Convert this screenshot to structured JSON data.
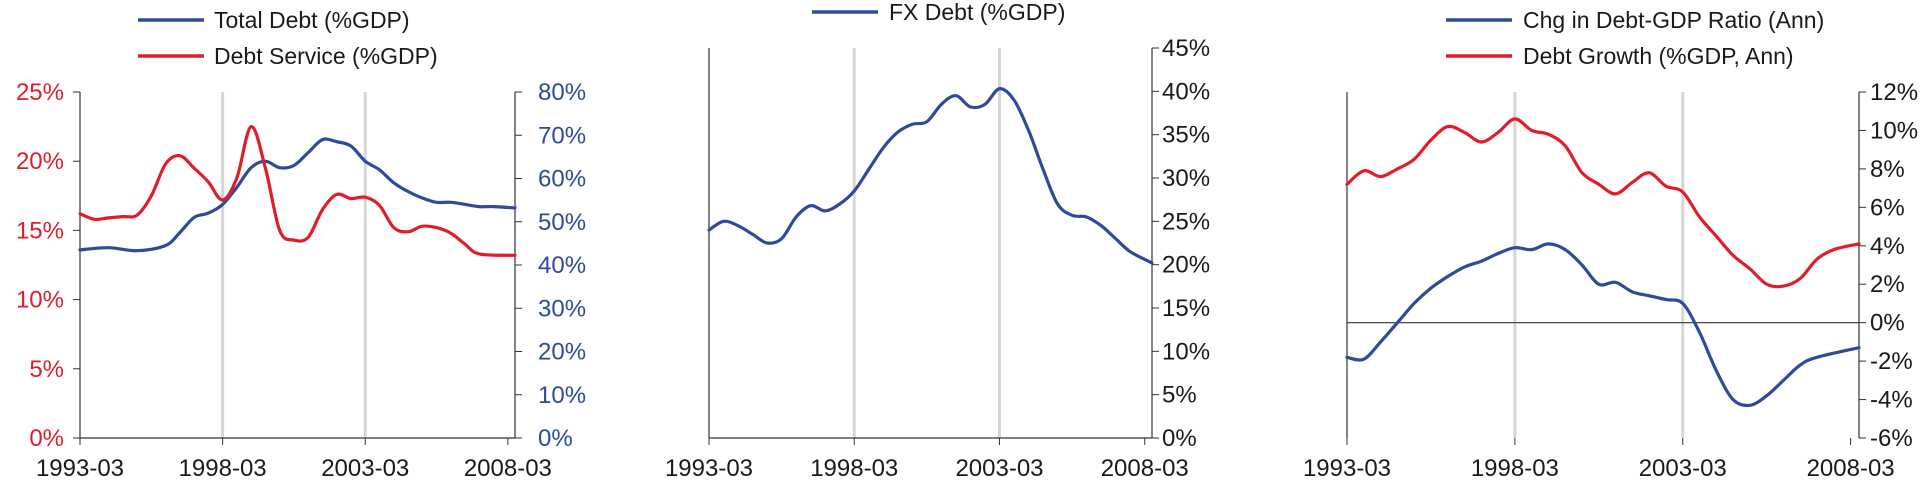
{
  "colors": {
    "blue": "#2e4a9a",
    "red": "#e01e2b",
    "axis": "#333333",
    "shade": "#d6d6d6",
    "text": "#1a1a1a"
  },
  "chart_data": [
    {
      "type": "line",
      "title": "",
      "x_ticks": [
        "1993-03",
        "1998-03",
        "2003-03",
        "2008-03"
      ],
      "x_range": [
        "1993-03",
        "2008-06"
      ],
      "vlines": [
        "1998-03",
        "2003-03"
      ],
      "legend_position": "top-left",
      "y_left": {
        "range": [
          0,
          25
        ],
        "ticks": [
          0,
          5,
          10,
          15,
          20,
          25
        ],
        "tick_labels": [
          "0%",
          "5%",
          "10%",
          "15%",
          "20%",
          "25%"
        ],
        "color": "#e01e2b"
      },
      "y_right": {
        "range": [
          0,
          80
        ],
        "ticks": [
          0,
          10,
          20,
          30,
          40,
          50,
          60,
          70,
          80
        ],
        "tick_labels": [
          "0%",
          "10%",
          "20%",
          "30%",
          "40%",
          "50%",
          "60%",
          "70%",
          "80%"
        ],
        "color": "#2e4a9a"
      },
      "series": [
        {
          "name": "Total Debt (%GDP)",
          "axis": "right",
          "color": "#2e4a9a",
          "points": [
            [
              "1993-03",
              43.5
            ],
            [
              "1994-03",
              44
            ],
            [
              "1995-03",
              43.3
            ],
            [
              "1996-03",
              44.5
            ],
            [
              "1996-09",
              47.5
            ],
            [
              "1997-03",
              51
            ],
            [
              "1997-09",
              52
            ],
            [
              "1998-03",
              54
            ],
            [
              "1998-09",
              58
            ],
            [
              "1999-03",
              62.5
            ],
            [
              "1999-09",
              64
            ],
            [
              "2000-03",
              62.5
            ],
            [
              "2000-09",
              63
            ],
            [
              "2001-03",
              66
            ],
            [
              "2001-09",
              69
            ],
            [
              "2002-03",
              68.5
            ],
            [
              "2002-09",
              67.5
            ],
            [
              "2003-03",
              64
            ],
            [
              "2003-09",
              62
            ],
            [
              "2004-03",
              59
            ],
            [
              "2004-09",
              57
            ],
            [
              "2005-03",
              55.5
            ],
            [
              "2005-09",
              54.5
            ],
            [
              "2006-03",
              54.5
            ],
            [
              "2006-09",
              54
            ],
            [
              "2007-03",
              53.5
            ],
            [
              "2007-09",
              53.5
            ],
            [
              "2008-06",
              53.2
            ]
          ]
        },
        {
          "name": "Debt Service (%GDP)",
          "axis": "left",
          "color": "#e01e2b",
          "points": [
            [
              "1993-03",
              16.2
            ],
            [
              "1993-09",
              15.8
            ],
            [
              "1994-03",
              15.9
            ],
            [
              "1994-09",
              16
            ],
            [
              "1995-03",
              16.1
            ],
            [
              "1995-09",
              17.5
            ],
            [
              "1996-03",
              19.8
            ],
            [
              "1996-09",
              20.4
            ],
            [
              "1997-03",
              19.5
            ],
            [
              "1997-09",
              18.5
            ],
            [
              "1998-03",
              17.2
            ],
            [
              "1998-09",
              18.8
            ],
            [
              "1999-03",
              22.5
            ],
            [
              "1999-09",
              19.5
            ],
            [
              "2000-03",
              15
            ],
            [
              "2000-09",
              14.3
            ],
            [
              "2001-03",
              14.5
            ],
            [
              "2001-09",
              16.5
            ],
            [
              "2002-03",
              17.6
            ],
            [
              "2002-09",
              17.3
            ],
            [
              "2003-03",
              17.4
            ],
            [
              "2003-09",
              16.8
            ],
            [
              "2004-03",
              15.2
            ],
            [
              "2004-09",
              14.9
            ],
            [
              "2005-03",
              15.3
            ],
            [
              "2005-09",
              15.2
            ],
            [
              "2006-03",
              14.8
            ],
            [
              "2006-09",
              14
            ],
            [
              "2007-03",
              13.3
            ],
            [
              "2008-06",
              13.2
            ]
          ]
        }
      ]
    },
    {
      "type": "line",
      "title": "",
      "x_ticks": [
        "1993-03",
        "1998-03",
        "2003-03",
        "2008-03"
      ],
      "x_range": [
        "1993-03",
        "2008-06"
      ],
      "vlines": [
        "1998-03",
        "2003-03"
      ],
      "legend_position": "top",
      "y_right": {
        "range": [
          0,
          45
        ],
        "ticks": [
          0,
          5,
          10,
          15,
          20,
          25,
          30,
          35,
          40,
          45
        ],
        "tick_labels": [
          "0%",
          "5%",
          "10%",
          "15%",
          "20%",
          "25%",
          "30%",
          "35%",
          "40%",
          "45%"
        ],
        "color": "#1a1a1a"
      },
      "series": [
        {
          "name": "FX Debt (%GDP)",
          "axis": "right",
          "color": "#2e4a9a",
          "points": [
            [
              "1993-03",
              24
            ],
            [
              "1993-09",
              25
            ],
            [
              "1994-03",
              24.5
            ],
            [
              "1994-09",
              23.5
            ],
            [
              "1995-03",
              22.5
            ],
            [
              "1995-09",
              23
            ],
            [
              "1996-03",
              25.5
            ],
            [
              "1996-09",
              26.8
            ],
            [
              "1997-03",
              26.2
            ],
            [
              "1997-09",
              27
            ],
            [
              "1998-03",
              28.5
            ],
            [
              "1998-09",
              31
            ],
            [
              "1999-03",
              33.5
            ],
            [
              "1999-09",
              35.3
            ],
            [
              "2000-03",
              36.2
            ],
            [
              "2000-09",
              36.5
            ],
            [
              "2001-03",
              38.5
            ],
            [
              "2001-09",
              39.5
            ],
            [
              "2002-03",
              38.2
            ],
            [
              "2002-09",
              38.5
            ],
            [
              "2003-03",
              40.3
            ],
            [
              "2003-09",
              39
            ],
            [
              "2004-03",
              35.5
            ],
            [
              "2004-09",
              31
            ],
            [
              "2005-03",
              27
            ],
            [
              "2005-09",
              25.7
            ],
            [
              "2006-03",
              25.5
            ],
            [
              "2006-09",
              24.5
            ],
            [
              "2007-03",
              23
            ],
            [
              "2007-09",
              21.5
            ],
            [
              "2008-06",
              20.2
            ]
          ]
        }
      ]
    },
    {
      "type": "line",
      "title": "",
      "x_ticks": [
        "1993-03",
        "1998-03",
        "2003-03",
        "2008-03"
      ],
      "x_range": [
        "1993-03",
        "2008-06"
      ],
      "vlines": [
        "1998-03",
        "2003-03"
      ],
      "zero_line": true,
      "legend_position": "top",
      "y_right": {
        "range": [
          -6,
          12
        ],
        "ticks": [
          -6,
          -4,
          -2,
          0,
          2,
          4,
          6,
          8,
          10,
          12
        ],
        "tick_labels": [
          "-6%",
          "-4%",
          "-2%",
          "0%",
          "2%",
          "4%",
          "6%",
          "8%",
          "10%",
          "12%"
        ],
        "color": "#1a1a1a"
      },
      "series": [
        {
          "name": "Chg in Debt-GDP Ratio (Ann)",
          "axis": "right",
          "color": "#2e4a9a",
          "points": [
            [
              "1993-03",
              -1.8
            ],
            [
              "1993-09",
              -1.9
            ],
            [
              "1994-03",
              -1.0
            ],
            [
              "1994-09",
              0
            ],
            [
              "1995-03",
              1.0
            ],
            [
              "1995-09",
              1.8
            ],
            [
              "1996-03",
              2.4
            ],
            [
              "1996-09",
              2.9
            ],
            [
              "1997-03",
              3.2
            ],
            [
              "1997-09",
              3.6
            ],
            [
              "1998-03",
              3.9
            ],
            [
              "1998-09",
              3.8
            ],
            [
              "1999-03",
              4.1
            ],
            [
              "1999-09",
              3.8
            ],
            [
              "2000-03",
              3.0
            ],
            [
              "2000-09",
              2.0
            ],
            [
              "2001-03",
              2.1
            ],
            [
              "2001-09",
              1.6
            ],
            [
              "2002-03",
              1.4
            ],
            [
              "2002-09",
              1.2
            ],
            [
              "2003-03",
              1.0
            ],
            [
              "2003-09",
              -0.5
            ],
            [
              "2004-03",
              -2.5
            ],
            [
              "2004-09",
              -4.0
            ],
            [
              "2005-03",
              -4.3
            ],
            [
              "2005-09",
              -3.8
            ],
            [
              "2006-03",
              -3.0
            ],
            [
              "2006-09",
              -2.2
            ],
            [
              "2007-03",
              -1.8
            ],
            [
              "2008-06",
              -1.3
            ]
          ]
        },
        {
          "name": "Debt Growth (%GDP, Ann)",
          "axis": "right",
          "color": "#e01e2b",
          "points": [
            [
              "1993-03",
              7.2
            ],
            [
              "1993-09",
              7.9
            ],
            [
              "1994-03",
              7.6
            ],
            [
              "1994-09",
              8.0
            ],
            [
              "1995-03",
              8.5
            ],
            [
              "1995-09",
              9.5
            ],
            [
              "1996-03",
              10.2
            ],
            [
              "1996-09",
              9.9
            ],
            [
              "1997-03",
              9.4
            ],
            [
              "1997-09",
              9.9
            ],
            [
              "1998-03",
              10.6
            ],
            [
              "1998-09",
              10.0
            ],
            [
              "1999-03",
              9.8
            ],
            [
              "1999-09",
              9.2
            ],
            [
              "2000-03",
              7.8
            ],
            [
              "2000-09",
              7.2
            ],
            [
              "2001-03",
              6.7
            ],
            [
              "2001-09",
              7.3
            ],
            [
              "2002-03",
              7.8
            ],
            [
              "2002-09",
              7.1
            ],
            [
              "2003-03",
              6.8
            ],
            [
              "2003-09",
              5.5
            ],
            [
              "2004-03",
              4.5
            ],
            [
              "2004-09",
              3.5
            ],
            [
              "2005-03",
              2.8
            ],
            [
              "2005-09",
              2.0
            ],
            [
              "2006-03",
              1.9
            ],
            [
              "2006-09",
              2.3
            ],
            [
              "2007-03",
              3.3
            ],
            [
              "2007-09",
              3.8
            ],
            [
              "2008-06",
              4.1
            ]
          ]
        }
      ]
    }
  ]
}
